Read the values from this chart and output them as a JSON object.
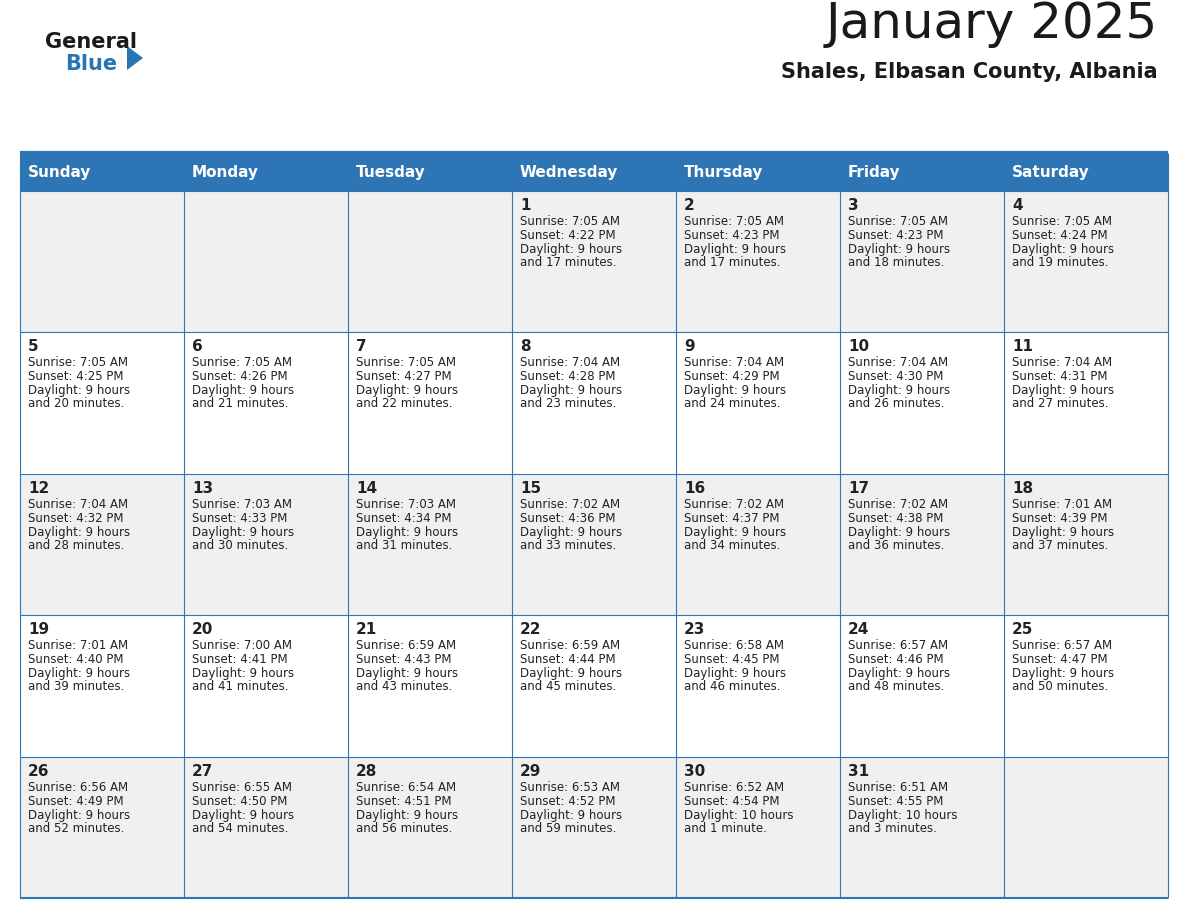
{
  "title": "January 2025",
  "subtitle": "Shales, Elbasan County, Albania",
  "header_bg": "#2E75B6",
  "header_text_color": "#FFFFFF",
  "day_names": [
    "Sunday",
    "Monday",
    "Tuesday",
    "Wednesday",
    "Thursday",
    "Friday",
    "Saturday"
  ],
  "odd_row_bg": "#F0F0F0",
  "even_row_bg": "#FFFFFF",
  "cell_text_color": "#222222",
  "grid_line_color": "#2E75B6",
  "logo_general_color": "#1A1A1A",
  "logo_blue_color": "#2775B2",
  "title_fontsize": 36,
  "subtitle_fontsize": 15,
  "header_fontsize": 11,
  "day_num_fontsize": 11,
  "cell_fontsize": 8.5,
  "weeks": [
    [
      {
        "day": null,
        "sunrise": null,
        "sunset": null,
        "daylight": null
      },
      {
        "day": null,
        "sunrise": null,
        "sunset": null,
        "daylight": null
      },
      {
        "day": null,
        "sunrise": null,
        "sunset": null,
        "daylight": null
      },
      {
        "day": 1,
        "sunrise": "7:05 AM",
        "sunset": "4:22 PM",
        "daylight": "9 hours and 17 minutes."
      },
      {
        "day": 2,
        "sunrise": "7:05 AM",
        "sunset": "4:23 PM",
        "daylight": "9 hours and 17 minutes."
      },
      {
        "day": 3,
        "sunrise": "7:05 AM",
        "sunset": "4:23 PM",
        "daylight": "9 hours and 18 minutes."
      },
      {
        "day": 4,
        "sunrise": "7:05 AM",
        "sunset": "4:24 PM",
        "daylight": "9 hours and 19 minutes."
      }
    ],
    [
      {
        "day": 5,
        "sunrise": "7:05 AM",
        "sunset": "4:25 PM",
        "daylight": "9 hours and 20 minutes."
      },
      {
        "day": 6,
        "sunrise": "7:05 AM",
        "sunset": "4:26 PM",
        "daylight": "9 hours and 21 minutes."
      },
      {
        "day": 7,
        "sunrise": "7:05 AM",
        "sunset": "4:27 PM",
        "daylight": "9 hours and 22 minutes."
      },
      {
        "day": 8,
        "sunrise": "7:04 AM",
        "sunset": "4:28 PM",
        "daylight": "9 hours and 23 minutes."
      },
      {
        "day": 9,
        "sunrise": "7:04 AM",
        "sunset": "4:29 PM",
        "daylight": "9 hours and 24 minutes."
      },
      {
        "day": 10,
        "sunrise": "7:04 AM",
        "sunset": "4:30 PM",
        "daylight": "9 hours and 26 minutes."
      },
      {
        "day": 11,
        "sunrise": "7:04 AM",
        "sunset": "4:31 PM",
        "daylight": "9 hours and 27 minutes."
      }
    ],
    [
      {
        "day": 12,
        "sunrise": "7:04 AM",
        "sunset": "4:32 PM",
        "daylight": "9 hours and 28 minutes."
      },
      {
        "day": 13,
        "sunrise": "7:03 AM",
        "sunset": "4:33 PM",
        "daylight": "9 hours and 30 minutes."
      },
      {
        "day": 14,
        "sunrise": "7:03 AM",
        "sunset": "4:34 PM",
        "daylight": "9 hours and 31 minutes."
      },
      {
        "day": 15,
        "sunrise": "7:02 AM",
        "sunset": "4:36 PM",
        "daylight": "9 hours and 33 minutes."
      },
      {
        "day": 16,
        "sunrise": "7:02 AM",
        "sunset": "4:37 PM",
        "daylight": "9 hours and 34 minutes."
      },
      {
        "day": 17,
        "sunrise": "7:02 AM",
        "sunset": "4:38 PM",
        "daylight": "9 hours and 36 minutes."
      },
      {
        "day": 18,
        "sunrise": "7:01 AM",
        "sunset": "4:39 PM",
        "daylight": "9 hours and 37 minutes."
      }
    ],
    [
      {
        "day": 19,
        "sunrise": "7:01 AM",
        "sunset": "4:40 PM",
        "daylight": "9 hours and 39 minutes."
      },
      {
        "day": 20,
        "sunrise": "7:00 AM",
        "sunset": "4:41 PM",
        "daylight": "9 hours and 41 minutes."
      },
      {
        "day": 21,
        "sunrise": "6:59 AM",
        "sunset": "4:43 PM",
        "daylight": "9 hours and 43 minutes."
      },
      {
        "day": 22,
        "sunrise": "6:59 AM",
        "sunset": "4:44 PM",
        "daylight": "9 hours and 45 minutes."
      },
      {
        "day": 23,
        "sunrise": "6:58 AM",
        "sunset": "4:45 PM",
        "daylight": "9 hours and 46 minutes."
      },
      {
        "day": 24,
        "sunrise": "6:57 AM",
        "sunset": "4:46 PM",
        "daylight": "9 hours and 48 minutes."
      },
      {
        "day": 25,
        "sunrise": "6:57 AM",
        "sunset": "4:47 PM",
        "daylight": "9 hours and 50 minutes."
      }
    ],
    [
      {
        "day": 26,
        "sunrise": "6:56 AM",
        "sunset": "4:49 PM",
        "daylight": "9 hours and 52 minutes."
      },
      {
        "day": 27,
        "sunrise": "6:55 AM",
        "sunset": "4:50 PM",
        "daylight": "9 hours and 54 minutes."
      },
      {
        "day": 28,
        "sunrise": "6:54 AM",
        "sunset": "4:51 PM",
        "daylight": "9 hours and 56 minutes."
      },
      {
        "day": 29,
        "sunrise": "6:53 AM",
        "sunset": "4:52 PM",
        "daylight": "9 hours and 59 minutes."
      },
      {
        "day": 30,
        "sunrise": "6:52 AM",
        "sunset": "4:54 PM",
        "daylight": "10 hours and 1 minute."
      },
      {
        "day": 31,
        "sunrise": "6:51 AM",
        "sunset": "4:55 PM",
        "daylight": "10 hours and 3 minutes."
      },
      {
        "day": null,
        "sunrise": null,
        "sunset": null,
        "daylight": null
      }
    ]
  ]
}
